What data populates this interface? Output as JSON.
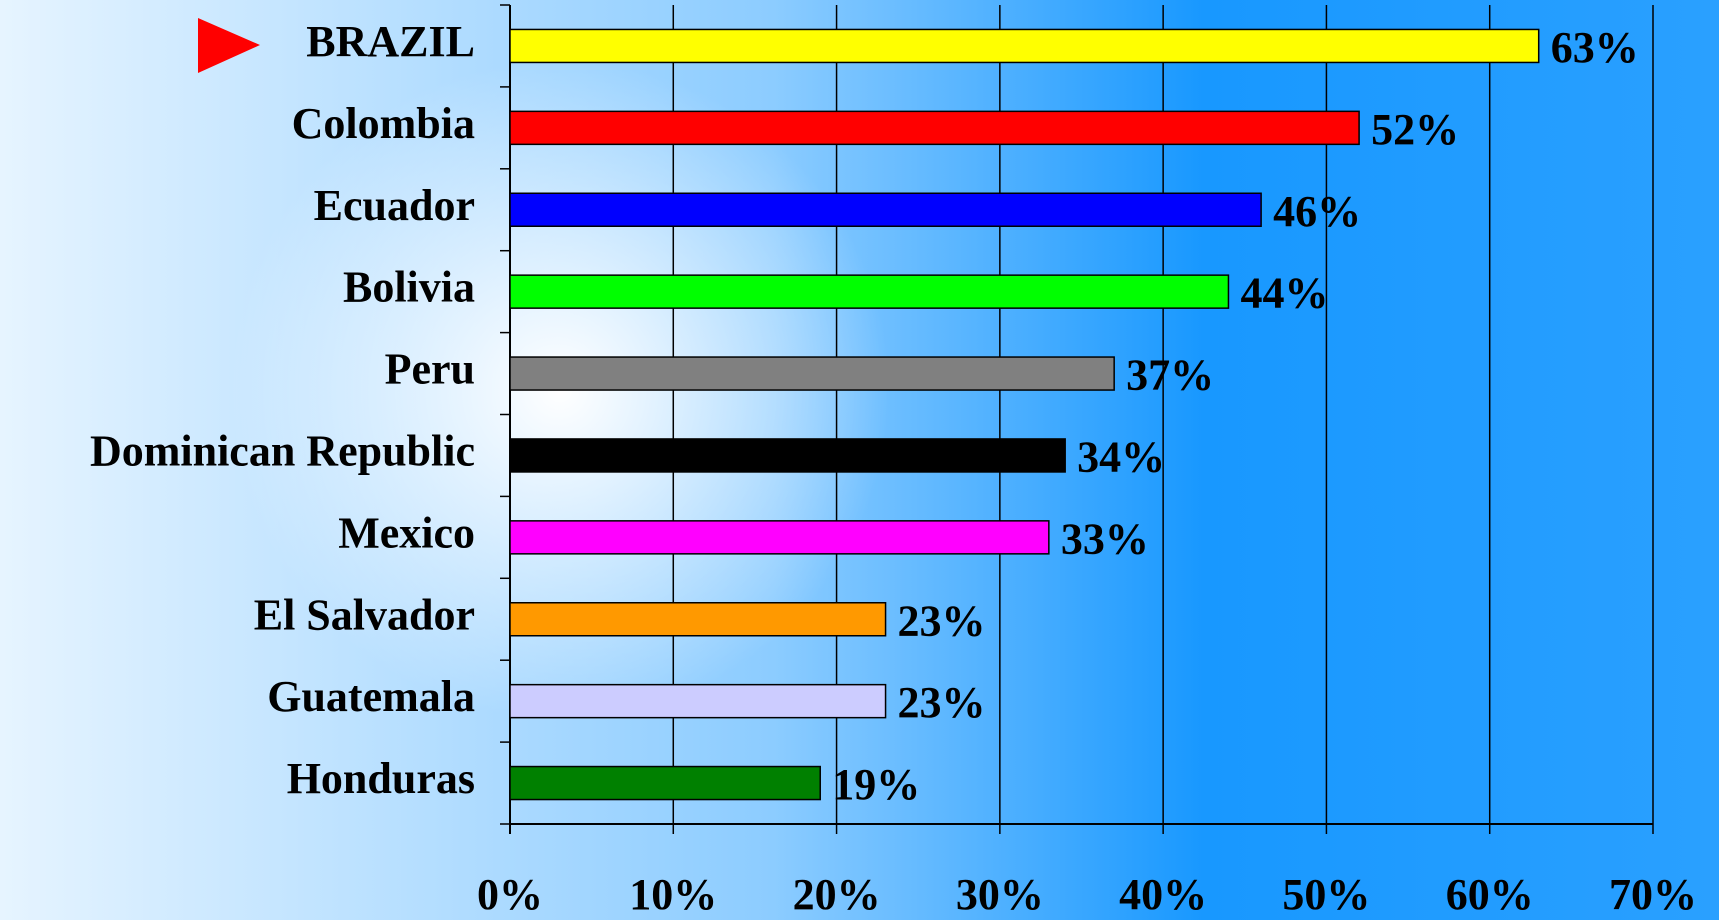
{
  "chart_data": {
    "type": "barh",
    "categories": [
      "BRAZIL",
      "Colombia",
      "Ecuador",
      "Bolivia",
      "Peru",
      "Dominican Republic",
      "Mexico",
      "El Salvador",
      "Guatemala",
      "Honduras"
    ],
    "values": [
      63,
      52,
      46,
      44,
      37,
      34,
      33,
      23,
      23,
      19
    ],
    "value_labels": [
      "63%",
      "52%",
      "46%",
      "44%",
      "37%",
      "34%",
      "33%",
      "23%",
      "23%",
      "19%"
    ],
    "colors": [
      "#ffff00",
      "#ff0000",
      "#0000ff",
      "#00ff00",
      "#808080",
      "#000000",
      "#ff00ff",
      "#ff9900",
      "#ccccff",
      "#008000"
    ],
    "xlim": [
      0,
      70
    ],
    "xticks": [
      {
        "value": 0,
        "label": "0%"
      },
      {
        "value": 10,
        "label": "10%"
      },
      {
        "value": 20,
        "label": "20%"
      },
      {
        "value": 30,
        "label": "30%"
      },
      {
        "value": 40,
        "label": "40%"
      },
      {
        "value": 50,
        "label": "50%"
      },
      {
        "value": 60,
        "label": "60%"
      },
      {
        "value": 70,
        "label": "70%"
      }
    ],
    "grid": true
  }
}
